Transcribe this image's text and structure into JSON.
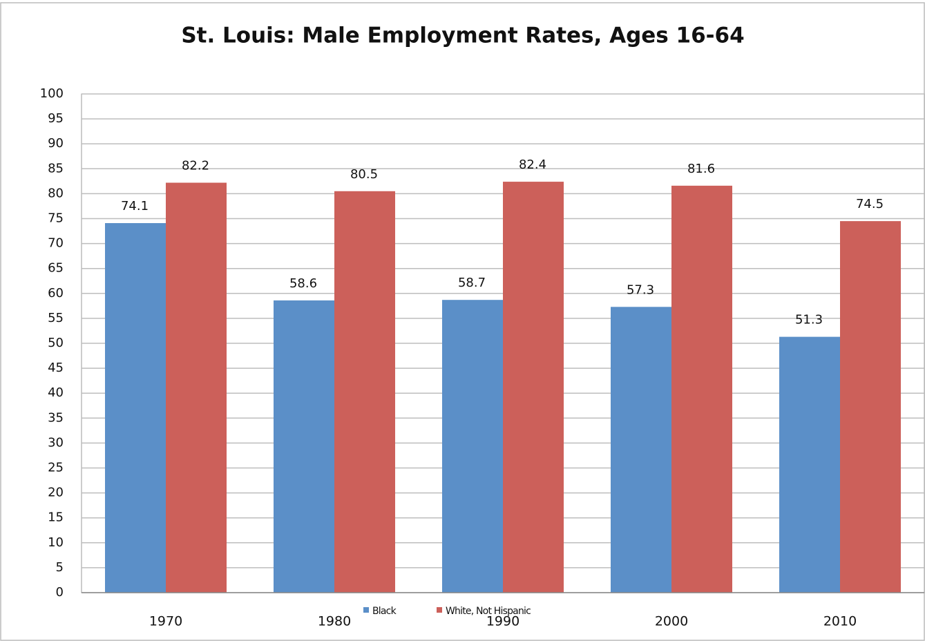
{
  "chart_data": {
    "type": "bar",
    "title": "St. Louis: Male Employment Rates, Ages 16-64",
    "categories": [
      "1970",
      "1980",
      "1990",
      "2000",
      "2010"
    ],
    "series": [
      {
        "name": "Black",
        "color": "#5b8fc8",
        "values": [
          74.1,
          58.6,
          58.7,
          57.3,
          51.3
        ]
      },
      {
        "name": "White, Not Hispanic",
        "color": "#cc605a",
        "values": [
          82.2,
          80.5,
          82.4,
          81.6,
          74.5
        ]
      }
    ],
    "ylim": [
      0,
      100
    ],
    "yticks": [
      0,
      5,
      10,
      15,
      20,
      25,
      30,
      35,
      40,
      45,
      50,
      55,
      60,
      65,
      70,
      75,
      80,
      85,
      90,
      95,
      100
    ],
    "grid": true,
    "legend": "bottom"
  }
}
